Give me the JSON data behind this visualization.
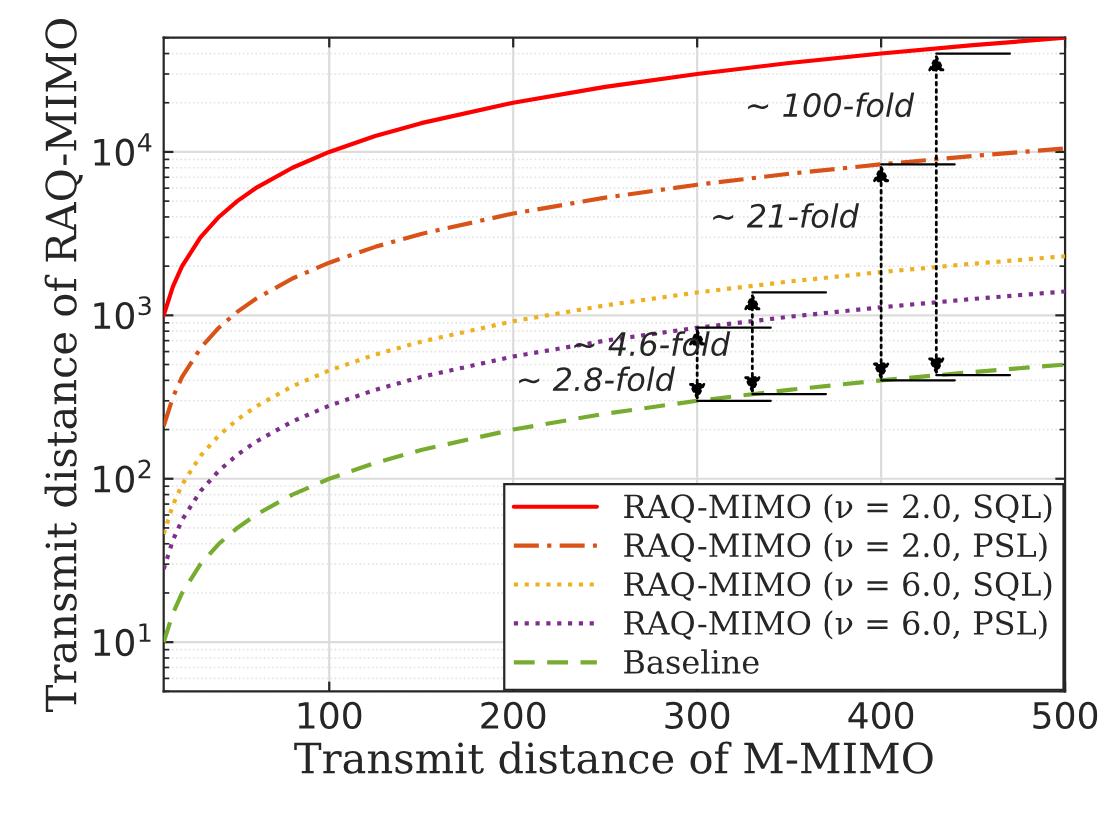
{
  "chart_data": {
    "type": "line",
    "xlabel": "Transmit distance of M-MIMO",
    "ylabel": "Transmit distance of RAQ-MIMO",
    "x": [
      10,
      15,
      20,
      30,
      40,
      50,
      60,
      80,
      100,
      125,
      150,
      200,
      250,
      300,
      350,
      400,
      450,
      500
    ],
    "series": [
      {
        "name": "RAQ-MIMO (ν = 2.0, SQL)",
        "color": "#ff0000",
        "line_style": "solid",
        "values": [
          1000,
          1500,
          2000,
          3000,
          4000,
          5000,
          6000,
          8000,
          10000,
          12500,
          15000,
          20000,
          25000,
          30000,
          35000,
          40000,
          45000,
          50000
        ]
      },
      {
        "name": "RAQ-MIMO (ν = 2.0, PSL)",
        "color": "#d95319",
        "line_style": "dashdot",
        "values": [
          210,
          315,
          420,
          630,
          840,
          1050,
          1260,
          1680,
          2100,
          2625,
          3150,
          4200,
          5250,
          6300,
          7350,
          8400,
          9450,
          10500
        ]
      },
      {
        "name": "RAQ-MIMO (ν = 6.0, SQL)",
        "color": "#edb120",
        "line_style": "dotted",
        "values": [
          46,
          69,
          92,
          138,
          184,
          230,
          276,
          368,
          460,
          575,
          690,
          920,
          1150,
          1380,
          1610,
          1840,
          2070,
          2300
        ]
      },
      {
        "name": "RAQ-MIMO (ν = 6.0, PSL)",
        "color": "#7e2f8e",
        "line_style": "dotted",
        "values": [
          28,
          42,
          56,
          84,
          112,
          140,
          168,
          224,
          280,
          350,
          420,
          560,
          700,
          840,
          980,
          1120,
          1260,
          1400
        ]
      },
      {
        "name": "Baseline",
        "color": "#77ac30",
        "line_style": "dashed",
        "values": [
          10,
          15,
          20,
          30,
          40,
          50,
          60,
          80,
          100,
          125,
          150,
          200,
          250,
          300,
          350,
          400,
          450,
          500
        ]
      }
    ],
    "annotations": [
      {
        "text": "~ 2.8-fold",
        "x": 300,
        "y": 840
      },
      {
        "text": "~ 4.6-fold",
        "x": 330,
        "y": 1380
      },
      {
        "text": "~ 21-fold",
        "x": 400,
        "y": 8400
      },
      {
        "text": "~ 100-fold",
        "x": 430,
        "y": 40000
      }
    ],
    "log": "y",
    "grid": true,
    "legend": "bottom right",
    "marker": "none",
    "xlim": [
      10,
      500
    ],
    "xticks": [
      100,
      200,
      300,
      400,
      500
    ],
    "ylim": [
      5,
      50000
    ],
    "yticks": [
      {
        "value": 10,
        "label": "10$^{1}$"
      },
      {
        "value": 100,
        "label": "10$^{2}$"
      },
      {
        "value": 1000,
        "label": "10$^{3}$"
      },
      {
        "value": 10000,
        "label": "10$^{4}$"
      }
    ]
  }
}
